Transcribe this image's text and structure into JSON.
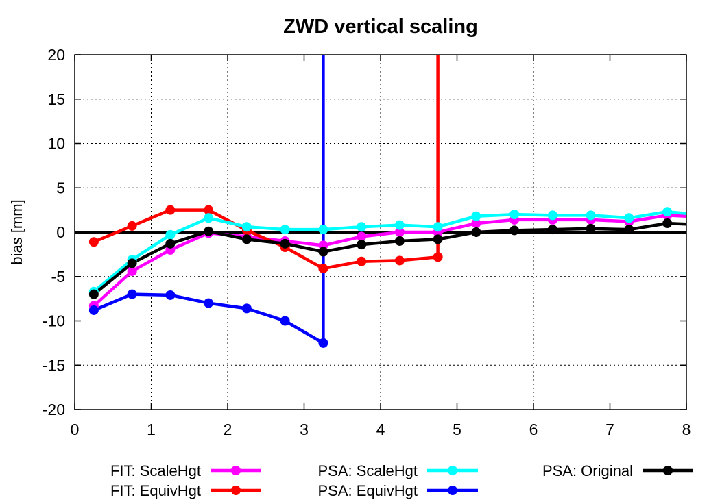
{
  "chart_data": {
    "type": "line",
    "title": "ZWD vertical scaling",
    "xlabel": "",
    "ylabel": "bias [mm]",
    "xlim": [
      0,
      8
    ],
    "ylim": [
      -20,
      20
    ],
    "x_ticks": [
      0,
      1,
      2,
      3,
      4,
      5,
      6,
      7,
      8
    ],
    "y_ticks": [
      -20,
      -15,
      -10,
      -5,
      0,
      5,
      10,
      15,
      20
    ],
    "grid": true,
    "grid_style": "dotted",
    "zero_line": true,
    "legend_position": "bottom",
    "series": [
      {
        "name": "FIT: ScaleHgt",
        "color": "#ff00ff",
        "x": [
          0.25,
          0.75,
          1.25,
          1.75,
          2.25,
          2.75,
          3.25,
          3.75,
          4.25,
          4.75,
          5.25,
          5.75,
          6.25,
          6.75,
          7.25,
          7.75,
          8.0
        ],
        "y": [
          -8.3,
          -4.4,
          -2.0,
          -0.1,
          -0.5,
          -1.0,
          -1.5,
          -0.5,
          0.0,
          0.0,
          1.0,
          1.4,
          1.4,
          1.4,
          1.2,
          1.9,
          1.8
        ]
      },
      {
        "name": "FIT: EquivHgt",
        "color": "#ff0000",
        "x": [
          0.25,
          0.75,
          1.25,
          1.75,
          2.25,
          2.75,
          3.25,
          3.75,
          4.25,
          4.75,
          4.75
        ],
        "y": [
          -1.1,
          0.7,
          2.5,
          2.5,
          0.2,
          -1.7,
          -4.1,
          -3.3,
          -3.2,
          -2.8,
          20
        ]
      },
      {
        "name": "PSA: ScaleHgt",
        "color": "#00ffff",
        "x": [
          0.25,
          0.75,
          1.25,
          1.75,
          2.25,
          2.75,
          3.25,
          3.75,
          4.25,
          4.75,
          5.25,
          5.75,
          6.25,
          6.75,
          7.25,
          7.75,
          8.0
        ],
        "y": [
          -6.7,
          -3.1,
          -0.3,
          1.6,
          0.6,
          0.3,
          0.3,
          0.6,
          0.8,
          0.6,
          1.8,
          2.0,
          1.9,
          1.9,
          1.6,
          2.3,
          2.1
        ]
      },
      {
        "name": "PSA: EquivHgt",
        "color": "#0000ff",
        "x": [
          0.25,
          0.75,
          1.25,
          1.75,
          2.25,
          2.75,
          3.25,
          3.25
        ],
        "y": [
          -8.8,
          -7.0,
          -7.1,
          -8.0,
          -8.6,
          -10.0,
          -12.5,
          20
        ]
      },
      {
        "name": "PSA: Original",
        "color": "#000000",
        "x": [
          0.25,
          0.75,
          1.25,
          1.75,
          2.25,
          2.75,
          3.25,
          3.75,
          4.25,
          4.75,
          5.25,
          5.75,
          6.25,
          6.75,
          7.25,
          7.75,
          8.0
        ],
        "y": [
          -7.0,
          -3.5,
          -1.3,
          0.1,
          -0.8,
          -1.3,
          -2.2,
          -1.4,
          -1.0,
          -0.8,
          0.0,
          0.2,
          0.3,
          0.4,
          0.3,
          1.0,
          0.9
        ]
      }
    ]
  }
}
